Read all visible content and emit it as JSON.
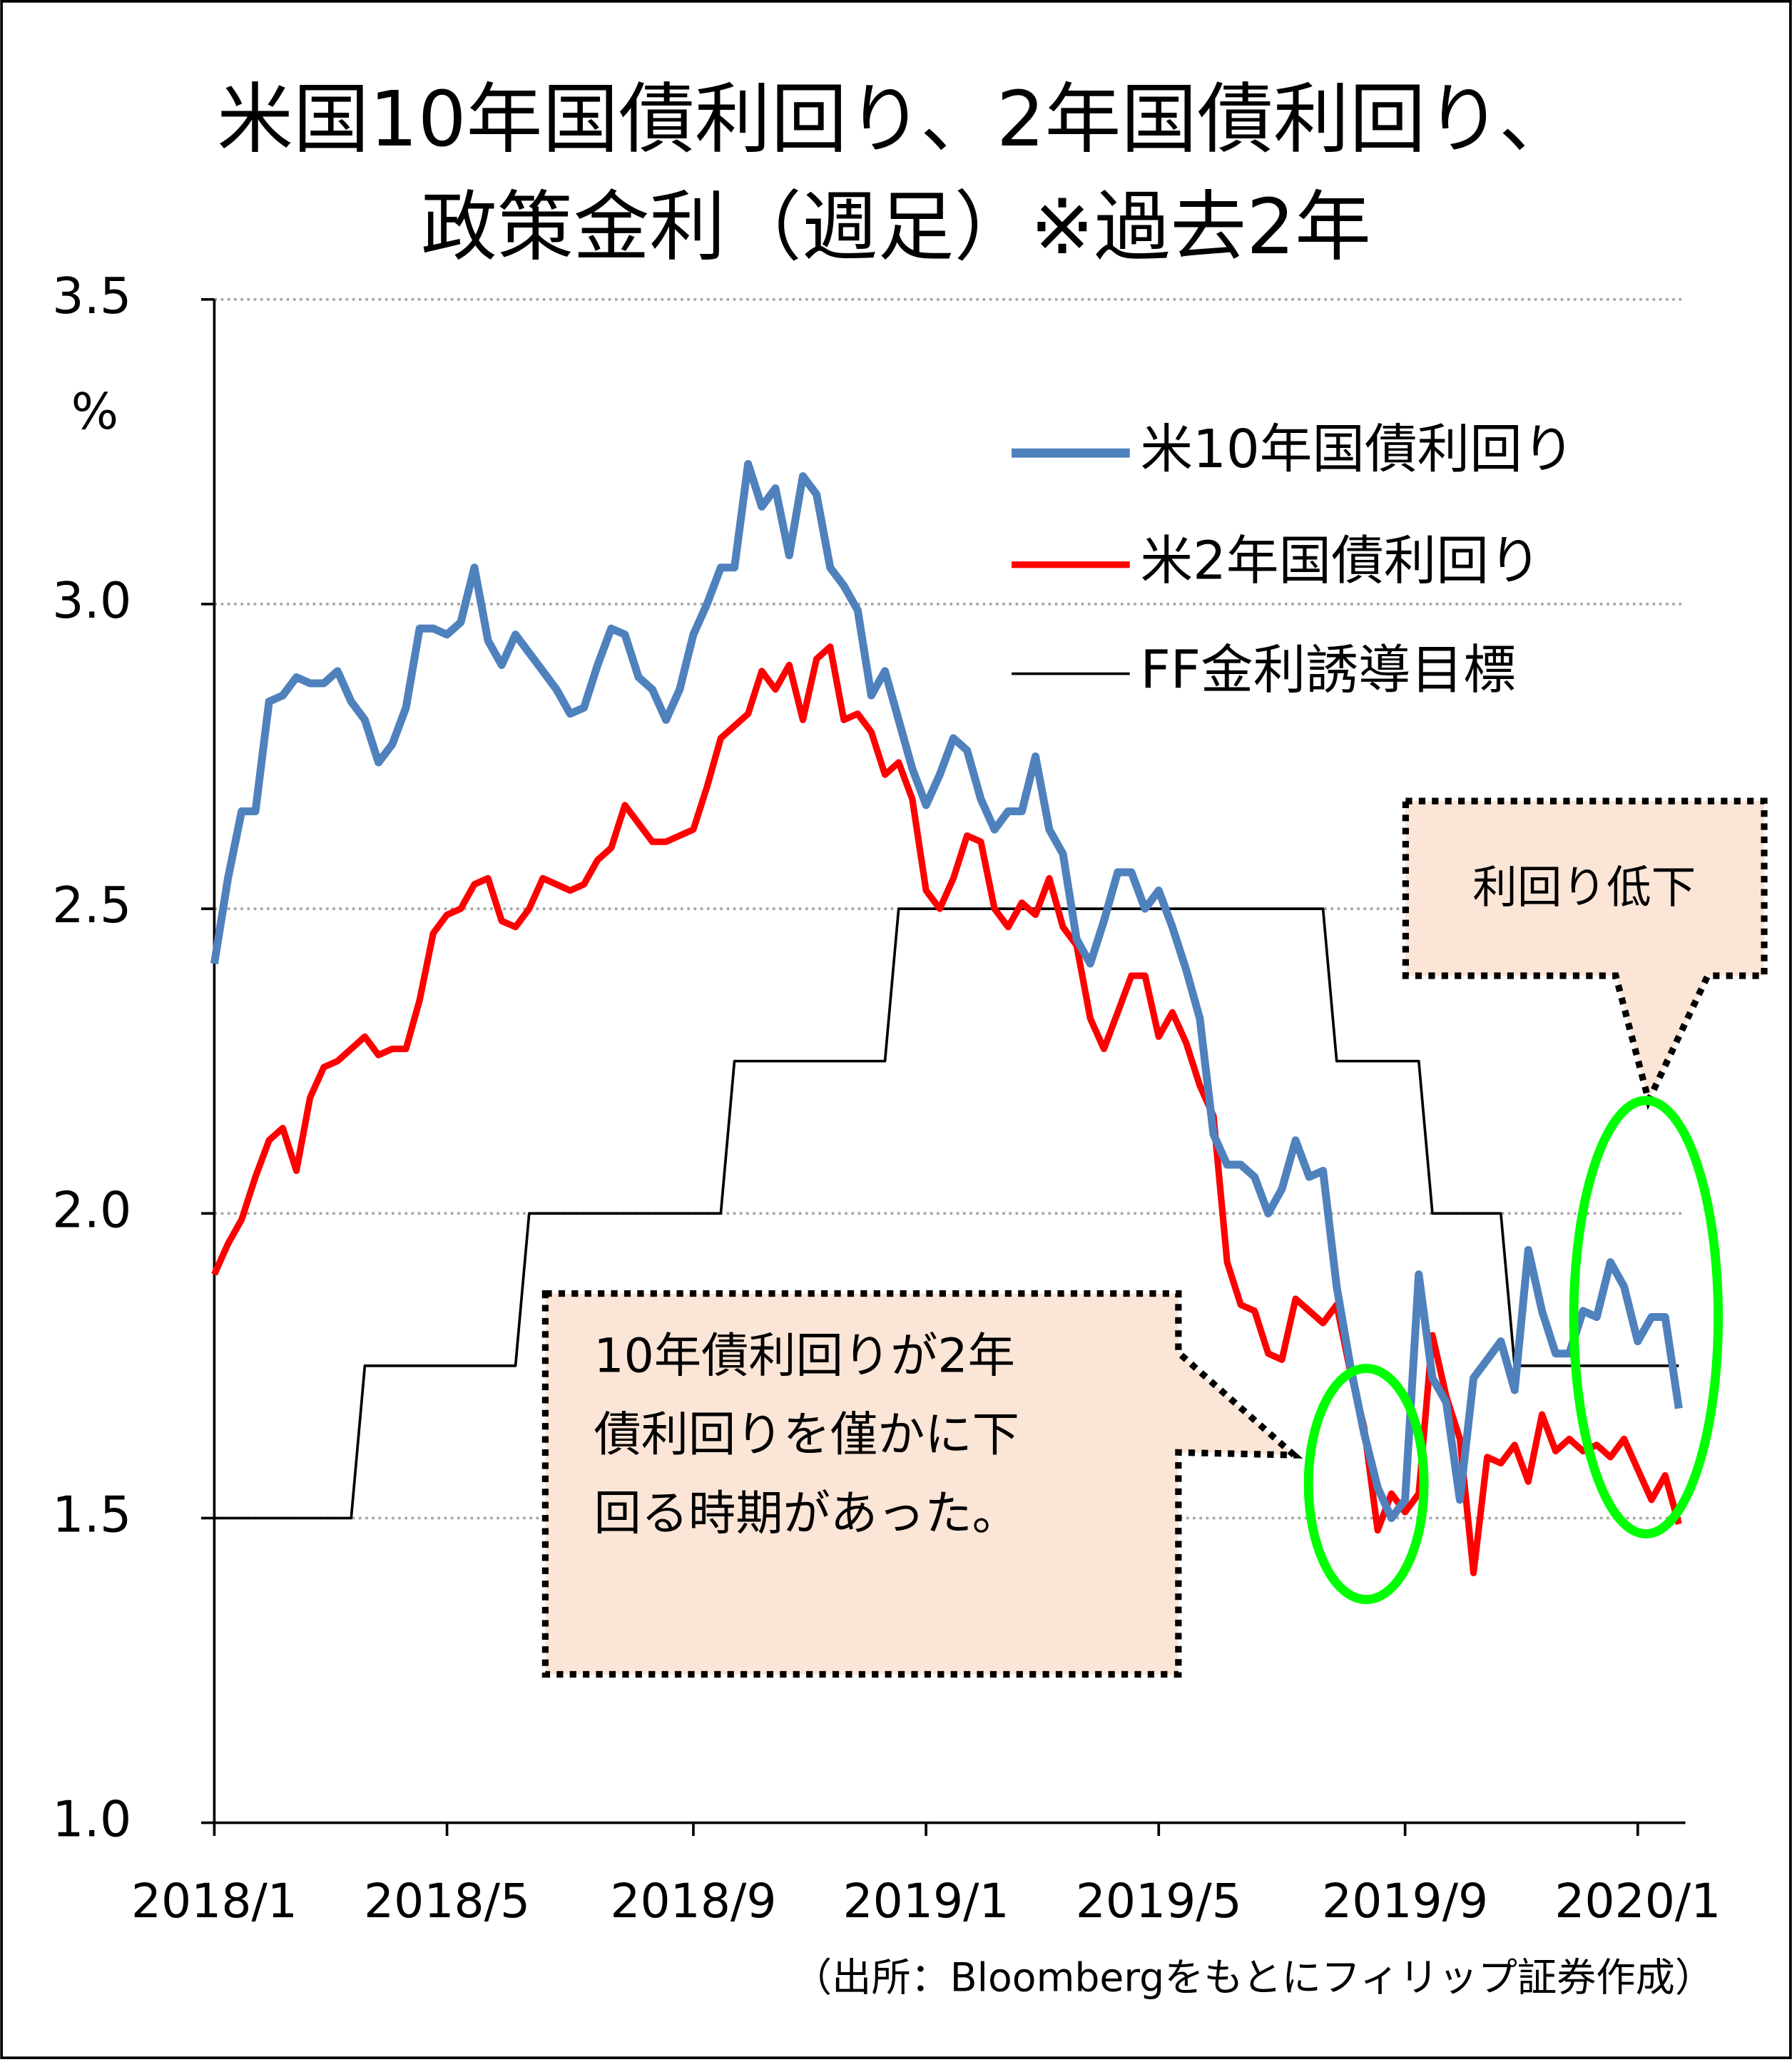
{
  "chart_data": {
    "type": "line",
    "title": [
      "米国10年国債利回り、2年国債利回り、",
      "政策金利（週足）※過去2年"
    ],
    "y_unit": "%",
    "categories": [
      "2018/1",
      null,
      null,
      null,
      null,
      null,
      null,
      null,
      null,
      null,
      null,
      null,
      null,
      null,
      null,
      null,
      null,
      "2018/5",
      null,
      null,
      null,
      null,
      null,
      null,
      null,
      null,
      null,
      null,
      null,
      null,
      null,
      null,
      null,
      null,
      null,
      "2018/9",
      null,
      null,
      null,
      null,
      null,
      null,
      null,
      null,
      null,
      null,
      null,
      null,
      null,
      null,
      null,
      null,
      "2019/1",
      null,
      null,
      null,
      null,
      null,
      null,
      null,
      null,
      null,
      null,
      null,
      null,
      null,
      null,
      null,
      null,
      "2019/5",
      null,
      null,
      null,
      null,
      null,
      null,
      null,
      null,
      null,
      null,
      null,
      null,
      null,
      null,
      null,
      null,
      null,
      "2019/9",
      null,
      null,
      null,
      null,
      null,
      null,
      null,
      null,
      null,
      null,
      null,
      null,
      null,
      null,
      null,
      null,
      "2020/1",
      null,
      null,
      null
    ],
    "series": [
      {
        "name": "米10年国債利回り",
        "color": "#4f81bd",
        "values": [
          2.41,
          2.55,
          2.66,
          2.66,
          2.84,
          2.85,
          2.88,
          2.87,
          2.87,
          2.89,
          2.84,
          2.81,
          2.74,
          2.77,
          2.83,
          2.96,
          2.96,
          2.95,
          2.97,
          3.06,
          2.94,
          2.9,
          2.95,
          2.92,
          2.89,
          2.86,
          2.82,
          2.83,
          2.9,
          2.96,
          2.95,
          2.88,
          2.86,
          2.81,
          2.86,
          2.95,
          3.0,
          3.06,
          3.06,
          3.23,
          3.16,
          3.19,
          3.08,
          3.21,
          3.18,
          3.06,
          3.03,
          2.99,
          2.85,
          2.89,
          2.81,
          2.73,
          2.67,
          2.72,
          2.78,
          2.76,
          2.68,
          2.63,
          2.66,
          2.66,
          2.75,
          2.63,
          2.59,
          2.45,
          2.41,
          2.48,
          2.56,
          2.56,
          2.5,
          2.53,
          2.47,
          2.4,
          2.32,
          2.13,
          2.08,
          2.08,
          2.06,
          2.0,
          2.04,
          2.12,
          2.06,
          2.07,
          1.88,
          1.75,
          1.64,
          1.55,
          1.5,
          1.53,
          1.9,
          1.73,
          1.69,
          1.53,
          1.73,
          1.76,
          1.79,
          1.71,
          1.94,
          1.84,
          1.77,
          1.77,
          1.84,
          1.83,
          1.92,
          1.88,
          1.79,
          1.83,
          1.83,
          1.68
        ]
      },
      {
        "name": "米2年国債利回り",
        "color": "#ff0000",
        "values": [
          1.9,
          1.95,
          1.99,
          2.06,
          2.12,
          2.14,
          2.07,
          2.19,
          2.24,
          2.25,
          2.27,
          2.29,
          2.26,
          2.27,
          2.27,
          2.35,
          2.46,
          2.49,
          2.5,
          2.54,
          2.55,
          2.48,
          2.47,
          2.5,
          2.55,
          2.54,
          2.53,
          2.54,
          2.58,
          2.6,
          2.67,
          2.64,
          2.61,
          2.61,
          2.62,
          2.63,
          2.7,
          2.78,
          2.8,
          2.82,
          2.89,
          2.86,
          2.9,
          2.81,
          2.91,
          2.93,
          2.81,
          2.82,
          2.79,
          2.72,
          2.74,
          2.68,
          2.53,
          2.5,
          2.55,
          2.62,
          2.61,
          2.5,
          2.47,
          2.51,
          2.49,
          2.55,
          2.47,
          2.44,
          2.32,
          2.27,
          2.33,
          2.39,
          2.39,
          2.29,
          2.33,
          2.28,
          2.21,
          2.16,
          1.92,
          1.85,
          1.84,
          1.77,
          1.76,
          1.86,
          1.84,
          1.82,
          1.85,
          1.74,
          1.65,
          1.48,
          1.54,
          1.51,
          1.54,
          1.8,
          1.7,
          1.63,
          1.41,
          1.6,
          1.59,
          1.62,
          1.56,
          1.67,
          1.61,
          1.63,
          1.61,
          1.62,
          1.6,
          1.63,
          1.58,
          1.53,
          1.57,
          1.49
        ]
      },
      {
        "name": "FF金利誘導目標",
        "color": "#000000",
        "values": [
          1.5,
          1.5,
          1.5,
          1.5,
          1.5,
          1.5,
          1.5,
          1.5,
          1.5,
          1.5,
          1.5,
          1.75,
          1.75,
          1.75,
          1.75,
          1.75,
          1.75,
          1.75,
          1.75,
          1.75,
          1.75,
          1.75,
          1.75,
          2.0,
          2.0,
          2.0,
          2.0,
          2.0,
          2.0,
          2.0,
          2.0,
          2.0,
          2.0,
          2.0,
          2.0,
          2.0,
          2.0,
          2.0,
          2.25,
          2.25,
          2.25,
          2.25,
          2.25,
          2.25,
          2.25,
          2.25,
          2.25,
          2.25,
          2.25,
          2.25,
          2.5,
          2.5,
          2.5,
          2.5,
          2.5,
          2.5,
          2.5,
          2.5,
          2.5,
          2.5,
          2.5,
          2.5,
          2.5,
          2.5,
          2.5,
          2.5,
          2.5,
          2.5,
          2.5,
          2.5,
          2.5,
          2.5,
          2.5,
          2.5,
          2.5,
          2.5,
          2.5,
          2.5,
          2.5,
          2.5,
          2.5,
          2.5,
          2.25,
          2.25,
          2.25,
          2.25,
          2.25,
          2.25,
          2.25,
          2.0,
          2.0,
          2.0,
          2.0,
          2.0,
          2.0,
          1.75,
          1.75,
          1.75,
          1.75,
          1.75,
          1.75,
          1.75,
          1.75,
          1.75,
          1.75,
          1.75,
          1.75,
          1.75
        ]
      }
    ],
    "ylim": [
      1.0,
      3.5
    ],
    "yticks": [
      {
        "value": 1.0,
        "label": "1.0"
      },
      1.5,
      {
        "value": 2.0,
        "label": "2.0"
      },
      2.5,
      {
        "value": 3.0,
        "label": "3.0"
      },
      3.5
    ],
    "grid": true,
    "annotations": [
      [
        "10年債利回りが2年",
        "債利回りを僅かに下",
        "回る時期があった。"
      ],
      [
        "利回り低下"
      ]
    ],
    "source": "（出所：Bloombergをもとにフィリップ証券作成）"
  }
}
